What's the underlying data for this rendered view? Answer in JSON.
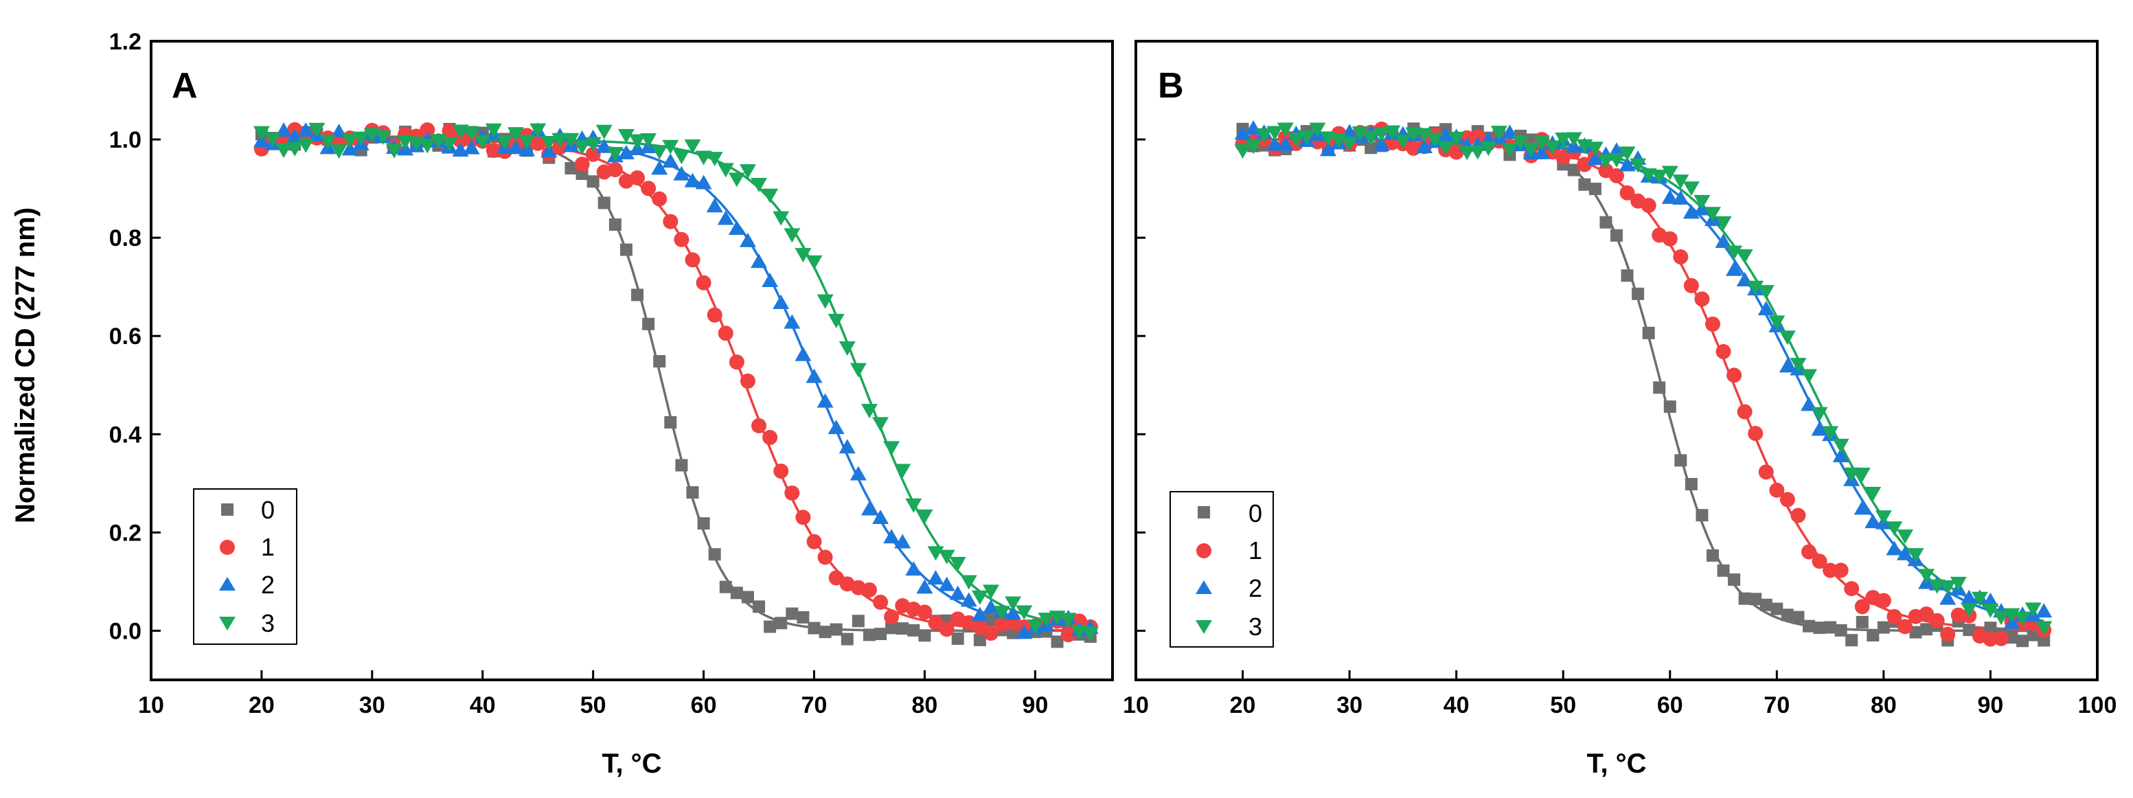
{
  "chart_data": [
    {
      "id": "A",
      "type": "scatter",
      "panel_label": "A",
      "xlabel": "T, °C",
      "ylabel": "Normalized CD (277 nm)",
      "xlim": [
        10,
        97
      ],
      "ylim": [
        -0.1,
        1.2
      ],
      "xticks": [
        10,
        20,
        30,
        40,
        50,
        60,
        70,
        80,
        90
      ],
      "yticks": [
        0.0,
        0.2,
        0.4,
        0.6,
        0.8,
        1.0,
        1.2
      ],
      "ytick_labels": [
        "0.0",
        "0.2",
        "0.4",
        "0.6",
        "0.8",
        "1.0",
        "1.2"
      ],
      "legend_position": "bottom-left",
      "series": [
        {
          "name": "0",
          "color": "#6e6e6e",
          "marker": "square",
          "fit": {
            "tm": 56.3,
            "w": 2.7
          }
        },
        {
          "name": "1",
          "color": "#f04040",
          "marker": "circle",
          "fit": {
            "tm": 63.8,
            "w": 4.2
          }
        },
        {
          "name": "2",
          "color": "#1e78dc",
          "marker": "triangle-up",
          "fit": {
            "tm": 70.3,
            "w": 4.6
          }
        },
        {
          "name": "3",
          "color": "#1aa85a",
          "marker": "triangle-down",
          "fit": {
            "tm": 74.5,
            "w": 4.3
          }
        }
      ]
    },
    {
      "id": "B",
      "type": "scatter",
      "panel_label": "B",
      "xlabel": "T, °C",
      "ylabel": "",
      "xlim": [
        10,
        100
      ],
      "ylim": [
        -0.1,
        1.2
      ],
      "xticks": [
        10,
        20,
        30,
        40,
        50,
        60,
        70,
        80,
        90,
        100
      ],
      "yticks": [
        0.0,
        0.2,
        0.4,
        0.6,
        0.8,
        1.0,
        1.2
      ],
      "ytick_labels": [],
      "legend_position": "bottom-left",
      "series": [
        {
          "name": "0",
          "color": "#6e6e6e",
          "marker": "square",
          "fit": {
            "tm": 59.2,
            "w": 3.0
          }
        },
        {
          "name": "1",
          "color": "#f04040",
          "marker": "circle",
          "fit": {
            "tm": 66.0,
            "w": 4.6
          }
        },
        {
          "name": "2",
          "color": "#1e78dc",
          "marker": "triangle-up",
          "fit": {
            "tm": 72.3,
            "w": 5.6
          }
        },
        {
          "name": "3",
          "color": "#1aa85a",
          "marker": "triangle-down",
          "fit": {
            "tm": 73.2,
            "w": 5.6
          }
        }
      ]
    }
  ],
  "sampling": {
    "t_start": 20,
    "t_end": 95,
    "t_step": 1
  },
  "legend_labels": [
    "0",
    "1",
    "2",
    "3"
  ]
}
